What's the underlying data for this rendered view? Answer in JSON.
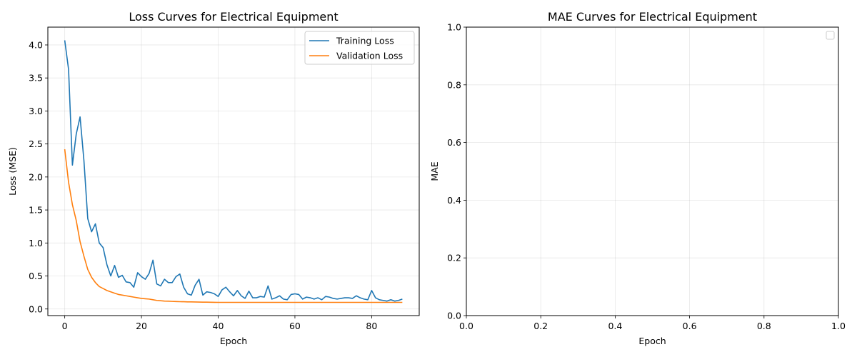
{
  "chart_data": [
    {
      "type": "line",
      "title": "Loss Curves for Electrical Equipment",
      "xlabel": "Epoch",
      "ylabel": "Loss (MSE)",
      "xlim": [
        -4.4,
        92.4
      ],
      "ylim": [
        -0.1,
        4.27
      ],
      "xticks": [
        0,
        20,
        40,
        60,
        80
      ],
      "yticks": [
        0.0,
        0.5,
        1.0,
        1.5,
        2.0,
        2.5,
        3.0,
        3.5,
        4.0
      ],
      "xtick_labels": [
        "0",
        "20",
        "40",
        "60",
        "80"
      ],
      "ytick_labels": [
        "0.0",
        "0.5",
        "1.0",
        "1.5",
        "2.0",
        "2.5",
        "3.0",
        "3.5",
        "4.0"
      ],
      "grid": true,
      "legend_position": "top-right",
      "series": [
        {
          "name": "Training Loss",
          "color": "#1f77b4",
          "values": [
            4.07,
            3.63,
            2.18,
            2.65,
            2.91,
            2.25,
            1.37,
            1.17,
            1.29,
            1.0,
            0.93,
            0.67,
            0.5,
            0.66,
            0.48,
            0.51,
            0.41,
            0.4,
            0.33,
            0.55,
            0.49,
            0.45,
            0.54,
            0.74,
            0.38,
            0.35,
            0.45,
            0.4,
            0.4,
            0.49,
            0.53,
            0.33,
            0.23,
            0.21,
            0.36,
            0.45,
            0.21,
            0.26,
            0.25,
            0.23,
            0.19,
            0.29,
            0.33,
            0.26,
            0.2,
            0.28,
            0.2,
            0.16,
            0.27,
            0.17,
            0.17,
            0.19,
            0.18,
            0.35,
            0.15,
            0.17,
            0.2,
            0.15,
            0.14,
            0.22,
            0.23,
            0.22,
            0.15,
            0.18,
            0.17,
            0.15,
            0.17,
            0.14,
            0.19,
            0.18,
            0.16,
            0.15,
            0.16,
            0.17,
            0.17,
            0.16,
            0.2,
            0.17,
            0.15,
            0.14,
            0.28,
            0.17,
            0.14,
            0.13,
            0.12,
            0.14,
            0.12,
            0.13,
            0.15
          ]
        },
        {
          "name": "Validation Loss",
          "color": "#ff7f0e",
          "values": [
            2.42,
            1.92,
            1.58,
            1.34,
            1.02,
            0.8,
            0.6,
            0.48,
            0.4,
            0.34,
            0.31,
            0.28,
            0.26,
            0.24,
            0.22,
            0.21,
            0.2,
            0.19,
            0.18,
            0.17,
            0.16,
            0.155,
            0.15,
            0.14,
            0.13,
            0.125,
            0.12,
            0.118,
            0.115,
            0.113,
            0.111,
            0.11,
            0.108,
            0.107,
            0.106,
            0.105,
            0.104,
            0.103,
            0.102,
            0.101,
            0.1,
            0.1,
            0.1,
            0.1,
            0.1,
            0.1,
            0.1,
            0.1,
            0.1,
            0.1,
            0.1,
            0.1,
            0.1,
            0.1,
            0.1,
            0.1,
            0.1,
            0.1,
            0.1,
            0.1,
            0.1,
            0.1,
            0.1,
            0.1,
            0.1,
            0.1,
            0.1,
            0.1,
            0.1,
            0.1,
            0.1,
            0.1,
            0.1,
            0.1,
            0.1,
            0.1,
            0.1,
            0.1,
            0.1,
            0.1,
            0.1,
            0.1,
            0.1,
            0.1,
            0.1,
            0.1,
            0.1,
            0.1,
            0.1
          ]
        }
      ]
    },
    {
      "type": "line",
      "title": "MAE Curves for Electrical Equipment",
      "xlabel": "Epoch",
      "ylabel": "MAE",
      "xlim": [
        0.0,
        1.0
      ],
      "ylim": [
        0.0,
        1.0
      ],
      "xticks": [
        0.0,
        0.2,
        0.4,
        0.6,
        0.8,
        1.0
      ],
      "yticks": [
        0.0,
        0.2,
        0.4,
        0.6,
        0.8,
        1.0
      ],
      "xtick_labels": [
        "0.0",
        "0.2",
        "0.4",
        "0.6",
        "0.8",
        "1.0"
      ],
      "ytick_labels": [
        "0.0",
        "0.2",
        "0.4",
        "0.6",
        "0.8",
        "1.0"
      ],
      "grid": true,
      "legend_position": "top-right",
      "series": []
    }
  ]
}
